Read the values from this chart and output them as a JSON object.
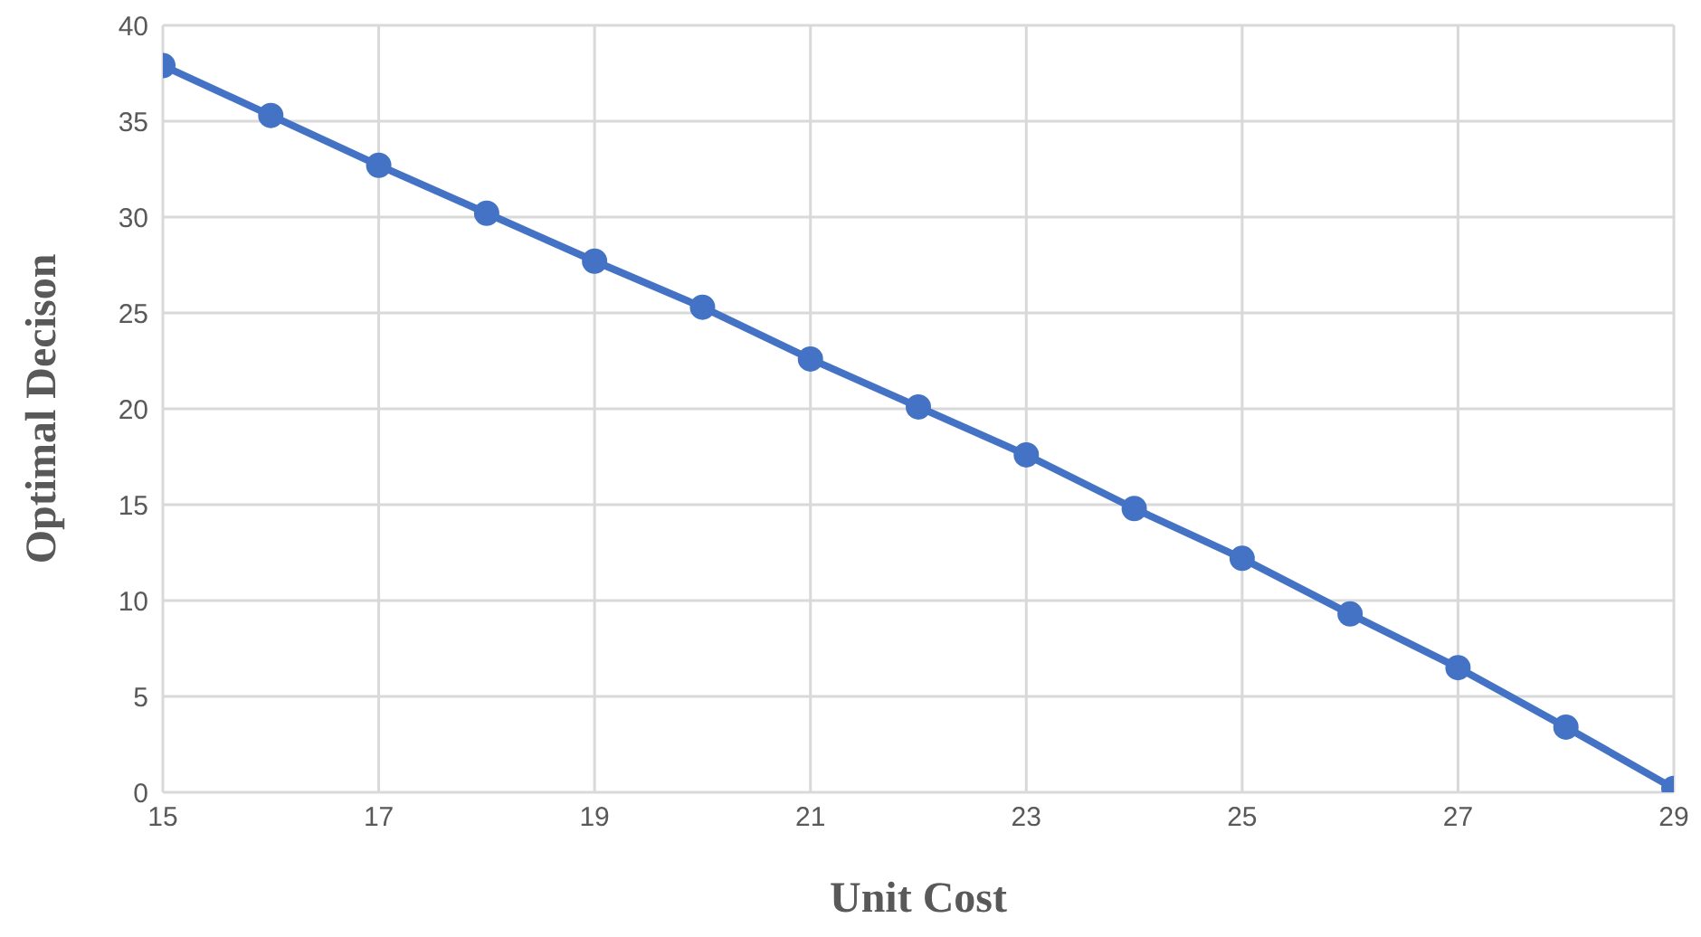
{
  "chart_data": {
    "type": "line",
    "xlabel": "Unit Cost",
    "ylabel": "Optimal Decison",
    "x": [
      15,
      16,
      17,
      18,
      19,
      20,
      21,
      22,
      23,
      24,
      25,
      26,
      27,
      28,
      29
    ],
    "series": [
      {
        "color": "#4472c4",
        "values": [
          37.9,
          35.3,
          32.7,
          30.2,
          27.7,
          25.3,
          22.6,
          20.1,
          17.6,
          14.8,
          12.2,
          9.3,
          6.5,
          3.4,
          0.2
        ]
      }
    ],
    "xlim": [
      15,
      29
    ],
    "xticks": [
      15,
      17,
      19,
      21,
      23,
      25,
      27,
      29
    ],
    "ylim": [
      0,
      40
    ],
    "yticks": [
      0,
      5,
      10,
      15,
      20,
      25,
      30,
      35,
      40
    ],
    "grid": true,
    "marker": "circle",
    "line_style": "solid",
    "legend": false
  }
}
